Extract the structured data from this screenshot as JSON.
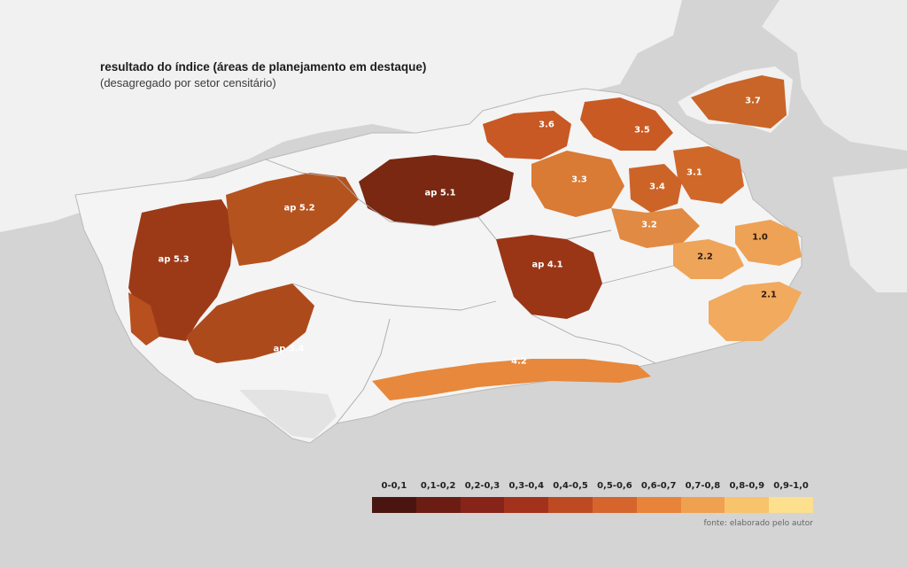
{
  "map": {
    "title": "resultado do índice (áreas de planejamento em destaque)",
    "subtitle": "(desagregado por setor censitário)",
    "source": "fonte: elaborado pelo autor",
    "colors": {
      "sea": "#d4d4d4",
      "land": "#f1f1f1",
      "border": "#b9b9b9"
    },
    "planning_areas": [
      {
        "label": "ap 5.1",
        "fill": "#7a2812"
      },
      {
        "label": "ap 5.2",
        "fill": "#b5531f"
      },
      {
        "label": "ap 5.3",
        "fill": "#9c3a18"
      },
      {
        "label": "ap 5.4",
        "fill": "#ad4a1c"
      },
      {
        "label": "ap 4.1",
        "fill": "#9a3616"
      },
      {
        "label": "4.2",
        "fill": "#e7883c"
      },
      {
        "label": "3.1",
        "fill": "#d0682a"
      },
      {
        "label": "3.2",
        "fill": "#e18a43"
      },
      {
        "label": "3.3",
        "fill": "#d97a35"
      },
      {
        "label": "3.4",
        "fill": "#cc6428"
      },
      {
        "label": "3.5",
        "fill": "#c95a24"
      },
      {
        "label": "3.6",
        "fill": "#c85824"
      },
      {
        "label": "3.7",
        "fill": "#c96528"
      },
      {
        "label": "2.2",
        "fill": "#eea55a"
      },
      {
        "label": "1.0",
        "fill": "#eea255"
      },
      {
        "label": "2.1",
        "fill": "#f1aa5e"
      }
    ],
    "legend": {
      "classes": [
        {
          "label": "0-0,1",
          "color": "#4a1510"
        },
        {
          "label": "0,1-0,2",
          "color": "#6b1d14"
        },
        {
          "label": "0,2-0,3",
          "color": "#86241a"
        },
        {
          "label": "0,3-0,4",
          "color": "#a3321c"
        },
        {
          "label": "0,4-0,5",
          "color": "#bd4a23"
        },
        {
          "label": "0,5-0,6",
          "color": "#d5652d"
        },
        {
          "label": "0,6-0,7",
          "color": "#e8843a"
        },
        {
          "label": "0,7-0,8",
          "color": "#f0a150"
        },
        {
          "label": "0,8-0,9",
          "color": "#f7c46c"
        },
        {
          "label": "0,9-1,0",
          "color": "#fde08e"
        }
      ]
    }
  }
}
